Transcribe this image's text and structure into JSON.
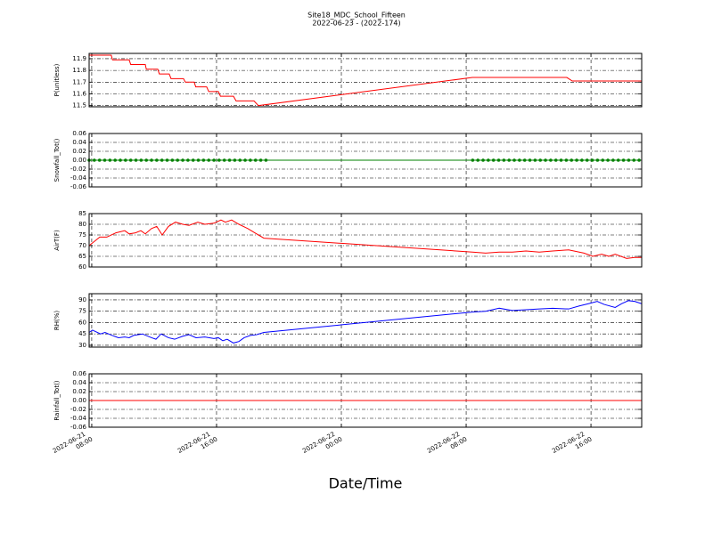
{
  "chart_data": [
    {
      "type": "line",
      "title": "Site18_MDC_School_Fifteen",
      "subtitle": "2022-06-23 - (2022-174)",
      "ylabel": "P(unitless)",
      "color": "#ff0000",
      "grid": true,
      "xlim": [
        "2022-06-21 07:50",
        "2022-06-22 19:15"
      ],
      "xticks": [
        "2022-06-21 08:00",
        "2022-06-21 16:00",
        "2022-06-22 00:00",
        "2022-06-22 08:00",
        "2022-06-22 16:00"
      ],
      "ylim": [
        11.49,
        11.945
      ],
      "yticks": [
        11.5,
        11.6,
        11.7,
        11.8,
        11.9
      ],
      "x": [
        "2022-06-21 07:50",
        "2022-06-21 09:15",
        "2022-06-21 09:20",
        "2022-06-21 10:24",
        "2022-06-21 10:30",
        "2022-06-21 11:26",
        "2022-06-21 11:30",
        "2022-06-21 12:14",
        "2022-06-21 12:20",
        "2022-06-21 12:58",
        "2022-06-21 13:05",
        "2022-06-21 13:53",
        "2022-06-21 14:00",
        "2022-06-21 14:34",
        "2022-06-21 14:40",
        "2022-06-21 15:22",
        "2022-06-21 15:30",
        "2022-06-21 16:07",
        "2022-06-21 16:15",
        "2022-06-21 17:05",
        "2022-06-21 17:15",
        "2022-06-21 18:24",
        "2022-06-21 18:41",
        "2022-06-22 08:24",
        "2022-06-22 14:27",
        "2022-06-22 14:48",
        "2022-06-22 19:15"
      ],
      "values": [
        11.93,
        11.93,
        11.89,
        11.89,
        11.85,
        11.85,
        11.81,
        11.81,
        11.77,
        11.77,
        11.73,
        11.73,
        11.7,
        11.7,
        11.66,
        11.66,
        11.62,
        11.62,
        11.58,
        11.58,
        11.54,
        11.54,
        11.5,
        11.74,
        11.74,
        11.71,
        11.71
      ]
    },
    {
      "type": "line",
      "ylabel": "Snowfall_Tot()",
      "color": "#008000",
      "marker": "o",
      "grid": true,
      "xlim": [
        "2022-06-21 07:50",
        "2022-06-22 19:15"
      ],
      "xticks": [
        "2022-06-21 08:00",
        "2022-06-21 16:00",
        "2022-06-22 00:00",
        "2022-06-22 08:00",
        "2022-06-22 16:00"
      ],
      "ylim": [
        -0.06,
        0.06
      ],
      "yticks": [
        -0.06,
        -0.04,
        -0.02,
        {
          "value": 0,
          "label": "0.00"
        },
        0.02,
        0.04,
        0.06
      ],
      "x": [
        "2022-06-21 07:50",
        "2022-06-21 08:10",
        "2022-06-21 08:30",
        "2022-06-21 08:50",
        "2022-06-21 09:10",
        "2022-06-21 09:30",
        "2022-06-21 09:50",
        "2022-06-21 10:10",
        "2022-06-21 10:30",
        "2022-06-21 10:50",
        "2022-06-21 11:10",
        "2022-06-21 11:30",
        "2022-06-21 11:50",
        "2022-06-21 12:10",
        "2022-06-21 12:30",
        "2022-06-21 12:50",
        "2022-06-21 13:10",
        "2022-06-21 13:30",
        "2022-06-21 13:50",
        "2022-06-21 14:10",
        "2022-06-21 14:30",
        "2022-06-21 14:50",
        "2022-06-21 15:10",
        "2022-06-21 15:30",
        "2022-06-21 15:50",
        "2022-06-21 16:10",
        "2022-06-21 16:30",
        "2022-06-21 16:50",
        "2022-06-21 17:10",
        "2022-06-21 17:30",
        "2022-06-21 17:50",
        "2022-06-21 18:10",
        "2022-06-21 18:30",
        "2022-06-21 18:50",
        "2022-06-21 19:10",
        "2022-06-22 08:25",
        "2022-06-22 08:45",
        "2022-06-22 09:05",
        "2022-06-22 09:25",
        "2022-06-22 09:45",
        "2022-06-22 10:05",
        "2022-06-22 10:25",
        "2022-06-22 10:45",
        "2022-06-22 11:05",
        "2022-06-22 11:25",
        "2022-06-22 11:45",
        "2022-06-22 12:05",
        "2022-06-22 12:25",
        "2022-06-22 12:45",
        "2022-06-22 13:05",
        "2022-06-22 13:25",
        "2022-06-22 13:45",
        "2022-06-22 14:05",
        "2022-06-22 14:25",
        "2022-06-22 14:45",
        "2022-06-22 15:05",
        "2022-06-22 15:25",
        "2022-06-22 15:45",
        "2022-06-22 16:05",
        "2022-06-22 16:25",
        "2022-06-22 16:45",
        "2022-06-22 17:05",
        "2022-06-22 17:25",
        "2022-06-22 17:45",
        "2022-06-22 18:05",
        "2022-06-22 18:25",
        "2022-06-22 18:45",
        "2022-06-22 19:05"
      ],
      "values": [
        0,
        0,
        0,
        0,
        0,
        0,
        0,
        0,
        0,
        0,
        0,
        0,
        0,
        0,
        0,
        0,
        0,
        0,
        0,
        0,
        0,
        0,
        0,
        0,
        0,
        0,
        0,
        0,
        0,
        0,
        0,
        0,
        0,
        0,
        0,
        0,
        0,
        0,
        0,
        0,
        0,
        0,
        0,
        0,
        0,
        0,
        0,
        0,
        0,
        0,
        0,
        0,
        0,
        0,
        0,
        0,
        0,
        0,
        0,
        0,
        0,
        0,
        0,
        0,
        0,
        0,
        0,
        0
      ]
    },
    {
      "type": "line",
      "ylabel": "AirT(F)",
      "color": "#ff0000",
      "grid": true,
      "xlim": [
        "2022-06-21 07:50",
        "2022-06-22 19:15"
      ],
      "xticks": [
        "2022-06-21 08:00",
        "2022-06-21 16:00",
        "2022-06-22 00:00",
        "2022-06-22 08:00",
        "2022-06-22 16:00"
      ],
      "ylim": [
        60,
        85
      ],
      "yticks": [
        60,
        65,
        70,
        75,
        80,
        85
      ],
      "x": [
        "2022-06-21 07:50",
        "2022-06-21 08:31",
        "2022-06-21 08:58",
        "2022-06-21 09:33",
        "2022-06-21 10:07",
        "2022-06-21 10:24",
        "2022-06-21 10:48",
        "2022-06-21 11:09",
        "2022-06-21 11:26",
        "2022-06-21 11:50",
        "2022-06-21 12:10",
        "2022-06-21 12:31",
        "2022-06-21 12:55",
        "2022-06-21 13:22",
        "2022-06-21 13:50",
        "2022-06-21 14:14",
        "2022-06-21 14:48",
        "2022-06-21 15:15",
        "2022-06-21 15:50",
        "2022-06-21 16:17",
        "2022-06-21 16:34",
        "2022-06-21 16:58",
        "2022-06-21 17:26",
        "2022-06-21 18:00",
        "2022-06-21 18:27",
        "2022-06-21 19:02",
        "2022-06-22 08:24",
        "2022-06-22 09:15",
        "2022-06-22 10:07",
        "2022-06-22 10:58",
        "2022-06-22 11:50",
        "2022-06-22 12:41",
        "2022-06-22 13:33",
        "2022-06-22 14:34",
        "2022-06-22 15:33",
        "2022-06-22 16:07",
        "2022-06-22 16:41",
        "2022-06-22 17:09",
        "2022-06-22 17:33",
        "2022-06-22 18:17",
        "2022-06-22 18:48",
        "2022-06-22 19:15"
      ],
      "values": [
        70,
        74,
        74,
        76,
        77,
        75.5,
        76,
        77,
        75.5,
        78,
        79,
        75,
        79,
        81,
        80,
        79.5,
        81,
        80,
        80.5,
        82,
        81,
        82,
        80,
        78,
        76,
        73.5,
        67,
        66.5,
        67,
        67,
        67.5,
        67,
        67.5,
        68,
        66.5,
        65,
        66,
        65,
        66,
        64,
        64.5,
        64.5
      ]
    },
    {
      "type": "line",
      "ylabel": "RH(%)",
      "color": "#0000ff",
      "grid": true,
      "xlim": [
        "2022-06-21 07:50",
        "2022-06-22 19:15"
      ],
      "xticks": [
        "2022-06-21 08:00",
        "2022-06-21 16:00",
        "2022-06-22 00:00",
        "2022-06-22 08:00",
        "2022-06-22 16:00"
      ],
      "ylim": [
        27.6,
        98.2
      ],
      "yticks": [
        30,
        45,
        60,
        75,
        90
      ],
      "x": [
        "2022-06-21 07:50",
        "2022-06-21 08:03",
        "2022-06-21 08:34",
        "2022-06-21 08:51",
        "2022-06-21 09:19",
        "2022-06-21 09:43",
        "2022-06-21 10:07",
        "2022-06-21 10:24",
        "2022-06-21 10:41",
        "2022-06-21 11:15",
        "2022-06-21 11:50",
        "2022-06-21 12:07",
        "2022-06-21 12:27",
        "2022-06-21 12:55",
        "2022-06-21 13:19",
        "2022-06-21 13:50",
        "2022-06-21 14:14",
        "2022-06-21 14:41",
        "2022-06-21 15:15",
        "2022-06-21 15:50",
        "2022-06-21 16:07",
        "2022-06-21 16:24",
        "2022-06-21 16:41",
        "2022-06-21 17:05",
        "2022-06-21 17:26",
        "2022-06-21 17:46",
        "2022-06-21 18:10",
        "2022-06-21 18:34",
        "2022-06-21 19:02",
        "2022-06-22 08:24",
        "2022-06-22 09:15",
        "2022-06-22 10:07",
        "2022-06-22 10:58",
        "2022-06-22 11:50",
        "2022-06-22 12:41",
        "2022-06-22 13:33",
        "2022-06-22 14:34",
        "2022-06-22 15:15",
        "2022-06-22 15:50",
        "2022-06-22 16:24",
        "2022-06-22 16:51",
        "2022-06-22 17:33",
        "2022-06-22 17:58",
        "2022-06-22 18:24",
        "2022-06-22 18:48",
        "2022-06-22 19:15"
      ],
      "values": [
        47,
        50,
        45,
        47,
        43,
        40,
        41,
        40,
        43,
        45,
        40,
        38,
        45,
        40,
        38,
        42,
        44,
        40,
        41,
        39,
        40,
        36,
        38,
        33,
        35,
        40,
        43,
        44,
        47,
        74,
        75,
        79,
        76,
        77,
        78,
        79,
        78,
        82,
        85,
        88,
        84,
        80,
        85,
        89,
        88,
        85
      ]
    },
    {
      "type": "line",
      "ylabel": "Rainfall_Tot()",
      "xlabel": "Date/Time",
      "color": "#ff0000",
      "grid": true,
      "xlim": [
        "2022-06-21 07:50",
        "2022-06-22 19:15"
      ],
      "xticks": [
        "2022-06-21 08:00",
        "2022-06-21 16:00",
        "2022-06-22 00:00",
        "2022-06-22 08:00",
        "2022-06-22 16:00"
      ],
      "ylim": [
        -0.06,
        0.06
      ],
      "yticks": [
        -0.06,
        -0.04,
        -0.02,
        {
          "value": 0,
          "label": "0.00"
        },
        0.02,
        0.04,
        0.06
      ],
      "x": [
        "2022-06-21 07:50",
        "2022-06-22 19:15"
      ],
      "values": [
        0,
        0
      ]
    }
  ]
}
